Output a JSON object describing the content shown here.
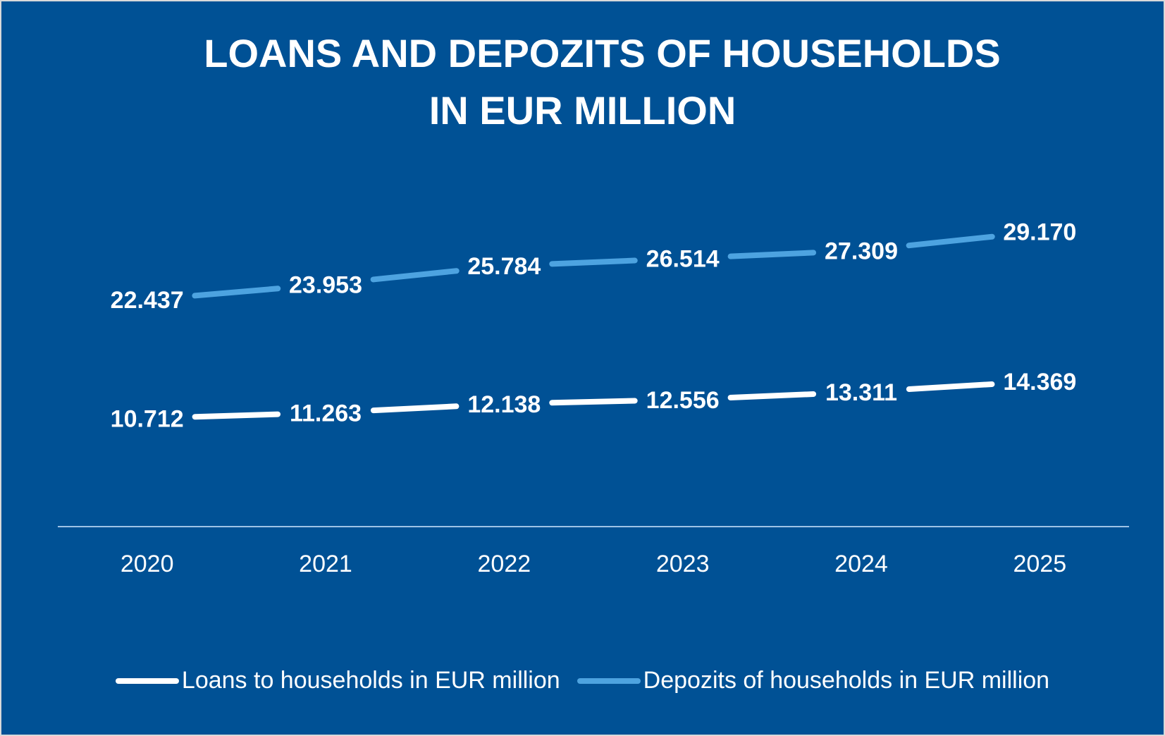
{
  "chart_data": {
    "type": "line",
    "title": "LOANS AND DEPOZITS OF HOUSEHOLDS",
    "subtitle": "IN EUR MILLION",
    "categories": [
      "2020",
      "2021",
      "2022",
      "2023",
      "2024",
      "2025"
    ],
    "series": [
      {
        "name": "Loans to households in EUR million",
        "color": "#ffffff",
        "values": [
          10712,
          11263,
          12138,
          12556,
          13311,
          14369
        ],
        "labels": [
          "10.712",
          "11.263",
          "12.138",
          "12.556",
          "13.311",
          "14.369"
        ]
      },
      {
        "name": "Depozits of households in EUR million",
        "color": "#4da3e0",
        "values": [
          22437,
          23953,
          25784,
          26514,
          27309,
          29170
        ],
        "labels": [
          "22.437",
          "23.953",
          "25.784",
          "26.514",
          "27.309",
          "29.170"
        ]
      }
    ],
    "xlabel": "",
    "ylabel": "",
    "ylim": [
      0,
      38000
    ],
    "grid": false,
    "legend": "bottom"
  }
}
